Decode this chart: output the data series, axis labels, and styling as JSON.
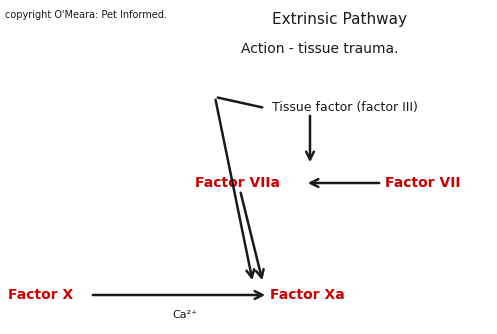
{
  "title": "Extrinsic Pathway",
  "subtitle": "Action - tissue trauma.",
  "copyright": "copyright O'Meara: Pet Informed.",
  "background_color": "#ffffff",
  "text_color_black": "#1a1a1a",
  "text_color_red": "#cc0000",
  "labels": {
    "tissue_factor": "Tissue factor (factor III)",
    "factor_viia": "Factor VIIa",
    "factor_vii": "Factor VII",
    "factor_x": "Factor X",
    "factor_xa": "Factor Xa",
    "ca2": "Ca²⁺"
  }
}
